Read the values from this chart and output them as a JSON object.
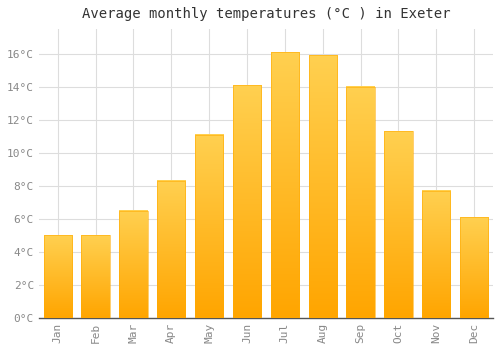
{
  "months": [
    "Jan",
    "Feb",
    "Mar",
    "Apr",
    "May",
    "Jun",
    "Jul",
    "Aug",
    "Sep",
    "Oct",
    "Nov",
    "Dec"
  ],
  "values": [
    5.0,
    5.0,
    6.5,
    8.3,
    11.1,
    14.1,
    16.1,
    15.9,
    14.0,
    11.3,
    7.7,
    6.1
  ],
  "bar_color_top": "#FFD050",
  "bar_color_bottom": "#FFA500",
  "title": "Average monthly temperatures (°C ) in Exeter",
  "ytick_labels": [
    "0°C",
    "2°C",
    "4°C",
    "6°C",
    "8°C",
    "10°C",
    "12°C",
    "14°C",
    "16°C"
  ],
  "ytick_values": [
    0,
    2,
    4,
    6,
    8,
    10,
    12,
    14,
    16
  ],
  "ylim": [
    0,
    17.5
  ],
  "background_color": "#ffffff",
  "grid_color": "#dddddd",
  "title_fontsize": 10,
  "tick_fontsize": 8,
  "tick_color": "#888888",
  "axis_color": "#333333"
}
